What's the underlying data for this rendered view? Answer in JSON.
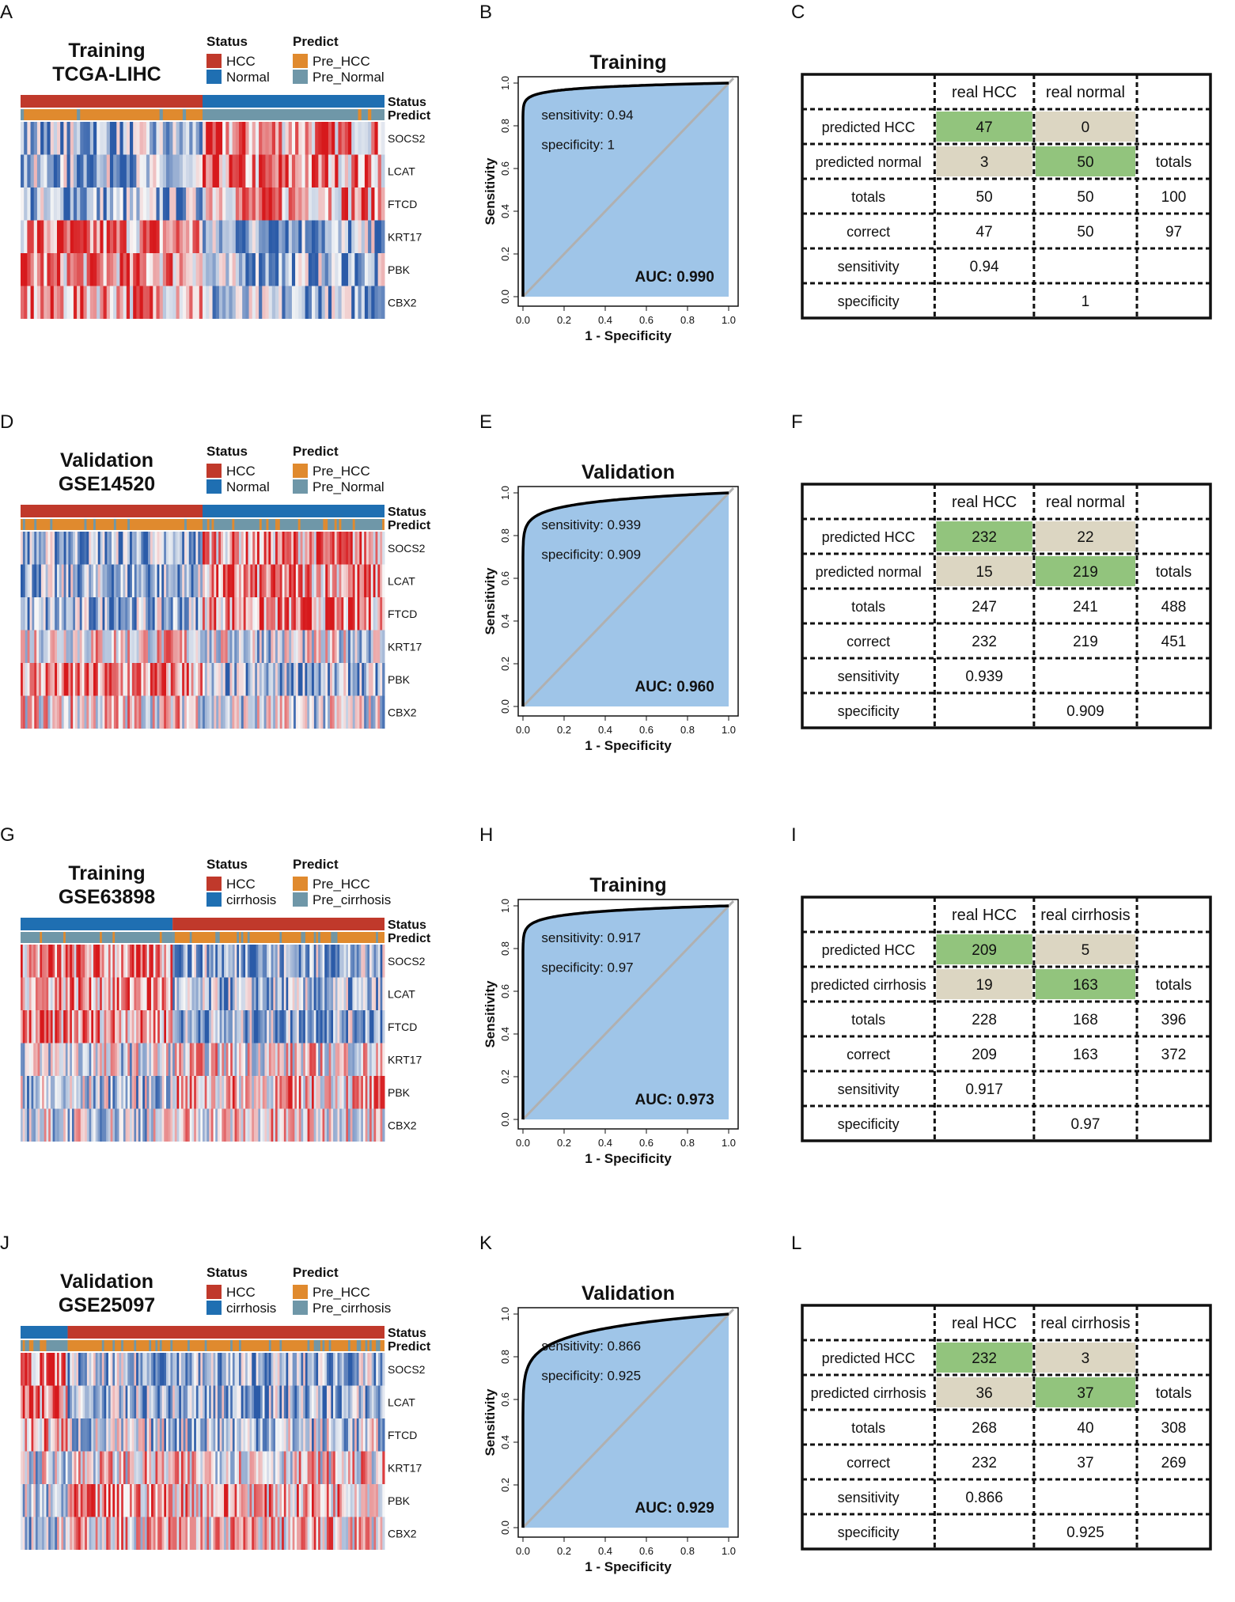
{
  "colors": {
    "hcc": "#c0392b",
    "normal": "#1f6fb2",
    "pre_hcc": "#e08a2e",
    "pre_normal": "#6f97a8",
    "roc_fill": "#9fc5e8",
    "diag": "#b0b0b0",
    "cell_green": "#92c47d",
    "cell_beige": "#dcd6c2",
    "heat_low": "#2b5ba8",
    "heat_mid": "#f7f7f7",
    "heat_high": "#d7191c"
  },
  "rows": [
    {
      "letters": [
        "A",
        "B",
        "C"
      ],
      "heatmap": {
        "title1": "Training",
        "title2": "TCGA-LIHC",
        "status_title": "Status",
        "predict_title": "Predict",
        "status_items": [
          "HCC",
          "Normal"
        ],
        "predict_items": [
          "Pre_HCC",
          "Pre_Normal"
        ],
        "bar_labels": [
          "Status",
          "Predict"
        ],
        "genes": [
          "SOCS2",
          "LCAT",
          "FTCD",
          "KRT17",
          "PBK",
          "CBX2"
        ]
      },
      "chart_data": {
        "type": "line",
        "title": "Training",
        "xlabel": "1 - Specificity",
        "ylabel": "Sensitivity",
        "xlim": [
          0,
          1
        ],
        "ylim": [
          0,
          1
        ],
        "ticks": [
          "0.0",
          "0.2",
          "0.4",
          "0.6",
          "0.8",
          "1.0"
        ],
        "auc_text": "AUC: 0.990",
        "auc": 0.99,
        "sens_text": "sensitivity: 0.94",
        "spec_text": "specificity: 1"
      },
      "table": {
        "col_headers": [
          "",
          "real HCC",
          "real normal",
          ""
        ],
        "rows": [
          [
            "predicted HCC",
            "47",
            "0",
            ""
          ],
          [
            "predicted normal",
            "3",
            "50",
            "totals"
          ],
          [
            "totals",
            "50",
            "50",
            "100"
          ],
          [
            "correct",
            "47",
            "50",
            "97"
          ],
          [
            "sensitivity",
            "0.94",
            "",
            ""
          ],
          [
            "specificity",
            "",
            "1",
            ""
          ]
        ]
      }
    },
    {
      "letters": [
        "D",
        "E",
        "F"
      ],
      "heatmap": {
        "title1": "Validation",
        "title2": "GSE14520",
        "status_title": "Status",
        "predict_title": "Predict",
        "status_items": [
          "HCC",
          "Normal"
        ],
        "predict_items": [
          "Pre_HCC",
          "Pre_Normal"
        ],
        "bar_labels": [
          "Status",
          "Predict"
        ],
        "genes": [
          "SOCS2",
          "LCAT",
          "FTCD",
          "KRT17",
          "PBK",
          "CBX2"
        ]
      },
      "chart_data": {
        "type": "line",
        "title": "Validation",
        "xlabel": "1 - Specificity",
        "ylabel": "Sensitivity",
        "xlim": [
          0,
          1
        ],
        "ylim": [
          0,
          1
        ],
        "ticks": [
          "0.0",
          "0.2",
          "0.4",
          "0.6",
          "0.8",
          "1.0"
        ],
        "auc_text": "AUC: 0.960",
        "auc": 0.96,
        "sens_text": "sensitivity: 0.939",
        "spec_text": "specificity: 0.909"
      },
      "table": {
        "col_headers": [
          "",
          "real HCC",
          "real normal",
          ""
        ],
        "rows": [
          [
            "predicted HCC",
            "232",
            "22",
            ""
          ],
          [
            "predicted normal",
            "15",
            "219",
            "totals"
          ],
          [
            "totals",
            "247",
            "241",
            "488"
          ],
          [
            "correct",
            "232",
            "219",
            "451"
          ],
          [
            "sensitivity",
            "0.939",
            "",
            ""
          ],
          [
            "specificity",
            "",
            "0.909",
            ""
          ]
        ]
      }
    },
    {
      "letters": [
        "G",
        "H",
        "I"
      ],
      "heatmap": {
        "title1": "Training",
        "title2": "GSE63898",
        "status_title": "Status",
        "predict_title": "Predict",
        "status_items": [
          "HCC",
          "cirrhosis"
        ],
        "predict_items": [
          "Pre_HCC",
          "Pre_cirrhosis"
        ],
        "bar_labels": [
          "Status",
          "Predict"
        ],
        "genes": [
          "SOCS2",
          "LCAT",
          "FTCD",
          "KRT17",
          "PBK",
          "CBX2"
        ]
      },
      "chart_data": {
        "type": "line",
        "title": "Training",
        "xlabel": "1 - Specificity",
        "ylabel": "Sensitivity",
        "xlim": [
          0,
          1
        ],
        "ylim": [
          0,
          1
        ],
        "ticks": [
          "0.0",
          "0.2",
          "0.4",
          "0.6",
          "0.8",
          "1.0"
        ],
        "auc_text": "AUC: 0.973",
        "auc": 0.973,
        "sens_text": "sensitivity: 0.917",
        "spec_text": "specificity: 0.97"
      },
      "table": {
        "col_headers": [
          "",
          "real HCC",
          "real cirrhosis",
          ""
        ],
        "rows": [
          [
            "predicted HCC",
            "209",
            "5",
            ""
          ],
          [
            "predicted cirrhosis",
            "19",
            "163",
            "totals"
          ],
          [
            "totals",
            "228",
            "168",
            "396"
          ],
          [
            "correct",
            "209",
            "163",
            "372"
          ],
          [
            "sensitivity",
            "0.917",
            "",
            ""
          ],
          [
            "specificity",
            "",
            "0.97",
            ""
          ]
        ]
      }
    },
    {
      "letters": [
        "J",
        "K",
        "L"
      ],
      "heatmap": {
        "title1": "Validation",
        "title2": "GSE25097",
        "status_title": "Status",
        "predict_title": "Predict",
        "status_items": [
          "HCC",
          "cirrhosis"
        ],
        "predict_items": [
          "Pre_HCC",
          "Pre_cirrhosis"
        ],
        "bar_labels": [
          "Status",
          "Predict"
        ],
        "genes": [
          "SOCS2",
          "LCAT",
          "FTCD",
          "KRT17",
          "PBK",
          "CBX2"
        ]
      },
      "chart_data": {
        "type": "line",
        "title": "Validation",
        "xlabel": "1 - Specificity",
        "ylabel": "Sensitivity",
        "xlim": [
          0,
          1
        ],
        "ylim": [
          0,
          1
        ],
        "ticks": [
          "0.0",
          "0.2",
          "0.4",
          "0.6",
          "0.8",
          "1.0"
        ],
        "auc_text": "AUC: 0.929",
        "auc": 0.929,
        "sens_text": "sensitivity: 0.866",
        "spec_text": "specificity: 0.925"
      },
      "table": {
        "col_headers": [
          "",
          "real HCC",
          "real cirrhosis",
          ""
        ],
        "rows": [
          [
            "predicted HCC",
            "232",
            "3",
            ""
          ],
          [
            "predicted cirrhosis",
            "36",
            "37",
            "totals"
          ],
          [
            "totals",
            "268",
            "40",
            "308"
          ],
          [
            "correct",
            "232",
            "37",
            "269"
          ],
          [
            "sensitivity",
            "0.866",
            "",
            ""
          ],
          [
            "specificity",
            "",
            "0.925",
            ""
          ]
        ]
      }
    }
  ]
}
